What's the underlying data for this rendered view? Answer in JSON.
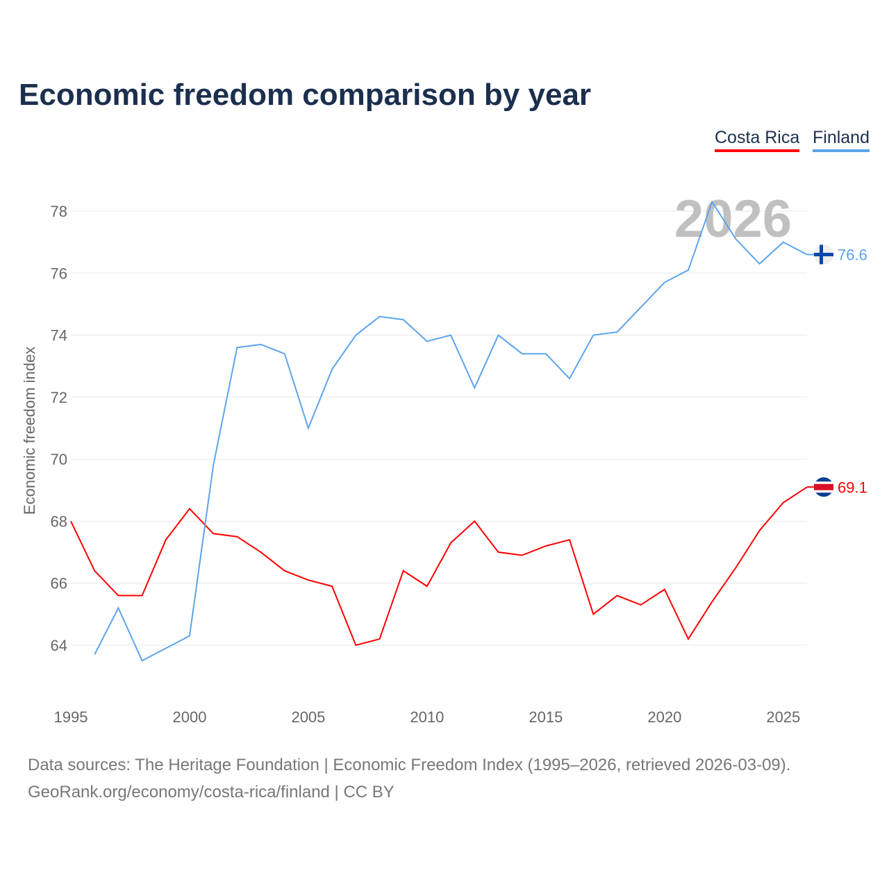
{
  "chart_data": {
    "type": "line",
    "title": "Economic freedom comparison by year",
    "xlabel": "",
    "ylabel": "Economic freedom index",
    "xlim": [
      1995,
      2026
    ],
    "ylim": [
      62.5,
      79.5
    ],
    "x_ticks": [
      1995,
      2000,
      2005,
      2010,
      2015,
      2020,
      2025
    ],
    "y_ticks": [
      64,
      66,
      68,
      70,
      72,
      74,
      76,
      78
    ],
    "grid": true,
    "legend_position": "top-right",
    "watermark_year": "2026",
    "series": [
      {
        "name": "Costa Rica",
        "color": "#ff0000",
        "end_label": "69.1",
        "x": [
          1995,
          1996,
          1997,
          1998,
          1999,
          2000,
          2001,
          2002,
          2003,
          2004,
          2005,
          2006,
          2007,
          2008,
          2009,
          2010,
          2011,
          2012,
          2013,
          2014,
          2015,
          2016,
          2017,
          2018,
          2019,
          2020,
          2021,
          2022,
          2023,
          2024,
          2025,
          2026
        ],
        "values": [
          68.0,
          66.4,
          65.6,
          65.6,
          67.4,
          68.4,
          67.6,
          67.5,
          67.0,
          66.4,
          66.1,
          65.9,
          64.0,
          64.2,
          66.4,
          65.9,
          67.3,
          68.0,
          67.0,
          66.9,
          67.2,
          67.4,
          65.0,
          65.6,
          65.3,
          65.8,
          64.2,
          65.4,
          66.5,
          67.7,
          68.6,
          69.1
        ]
      },
      {
        "name": "Finland",
        "color": "#5ba4ee",
        "end_label": "76.6",
        "x": [
          1996,
          1997,
          1998,
          1999,
          2000,
          2001,
          2002,
          2003,
          2004,
          2005,
          2006,
          2007,
          2008,
          2009,
          2010,
          2011,
          2012,
          2013,
          2014,
          2015,
          2016,
          2017,
          2018,
          2019,
          2020,
          2021,
          2022,
          2023,
          2024,
          2025,
          2026
        ],
        "values": [
          63.7,
          65.2,
          63.5,
          63.9,
          64.3,
          69.8,
          73.6,
          73.7,
          73.4,
          71.0,
          72.9,
          74.0,
          74.6,
          74.5,
          73.8,
          74.0,
          72.3,
          74.0,
          73.4,
          73.4,
          72.6,
          74.0,
          74.1,
          74.9,
          75.7,
          76.1,
          78.3,
          77.1,
          76.3,
          77.0,
          76.6
        ]
      }
    ]
  },
  "footer": {
    "sources": "Data sources: The Heritage Foundation | Economic Freedom Index (1995–2026, retrieved 2026-03-09).",
    "credit": "GeoRank.org/economy/costa-rica/finland | CC BY"
  }
}
